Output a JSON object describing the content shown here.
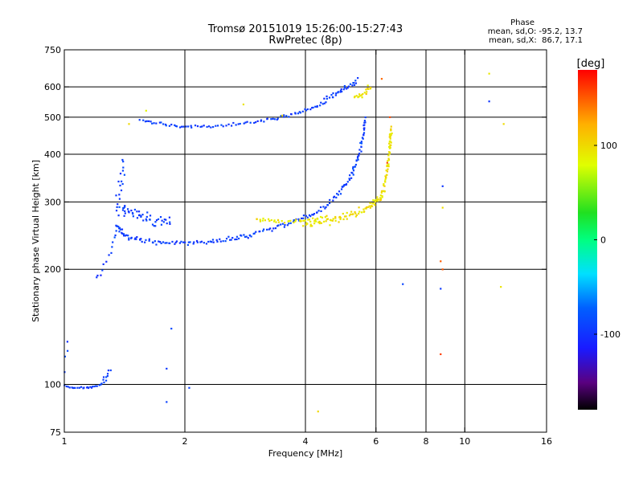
{
  "chart_data": {
    "type": "scatter",
    "title": "Tromsø 20151019 15:26:00-15:27:43",
    "subtitle": "RwPretec (8p)",
    "xlabel": "Frequency [MHz]",
    "ylabel": "Stationary phase Virtual Height [km]",
    "x_scale": "log",
    "y_scale": "log",
    "xlim": [
      1,
      16
    ],
    "ylim": [
      75,
      750
    ],
    "x_ticks": [
      1,
      2,
      4,
      6,
      8,
      10,
      16
    ],
    "x_tick_labels": [
      "1",
      "2",
      "4",
      "6",
      "8",
      "10",
      "16"
    ],
    "x_gridlines": [
      2,
      4,
      6,
      8,
      10
    ],
    "y_ticks": [
      75,
      100,
      200,
      300,
      400,
      500,
      600,
      750
    ],
    "y_tick_labels": [
      "75",
      "100",
      "200",
      "300",
      "400",
      "500",
      "600",
      "750"
    ],
    "y_gridlines": [
      100,
      200,
      300,
      400,
      500,
      600
    ],
    "grid": true,
    "phase_info": {
      "title": "Phase",
      "line_o": "mean, sd,O: -95.2, 13.7",
      "line_x": "mean, sd,X:  86.7, 17.1"
    },
    "colorbar": {
      "label": "[deg]",
      "range": [
        -180,
        180
      ],
      "ticks": [
        100,
        0,
        -100
      ],
      "tick_labels": [
        "100",
        "0",
        "-100"
      ]
    },
    "series": [
      {
        "mode": "O",
        "phase": -95,
        "segments": [
          {
            "x": [
              1.0,
              1.05,
              1.1,
              1.15,
              1.2,
              1.25
            ],
            "y": [
              99,
              98,
              98,
              98,
              99,
              101
            ],
            "n": 26,
            "jx": 0.01,
            "jy": 0.01
          },
          {
            "x": [
              1.25,
              1.3
            ],
            "y": [
              103,
              108
            ],
            "n": 8,
            "jx": 0.02,
            "jy": 0.02
          },
          {
            "x": [
              1.0,
              1.02
            ],
            "y": [
              110,
              130
            ],
            "n": 4,
            "jx": 0.01,
            "jy": 0.03
          },
          {
            "x": [
              1.2,
              1.25,
              1.3,
              1.33,
              1.36
            ],
            "y": [
              188,
              200,
              220,
              240,
              260
            ],
            "n": 14,
            "jx": 0.01,
            "jy": 0.02
          },
          {
            "x": [
              1.35,
              1.38,
              1.4
            ],
            "y": [
              280,
              330,
              380
            ],
            "n": 18,
            "jx": 0.02,
            "jy": 0.05
          },
          {
            "x": [
              1.35,
              1.42,
              1.55,
              1.75,
              2.0,
              2.3,
              2.6,
              2.9
            ],
            "y": [
              260,
              245,
              238,
              235,
              234,
              236,
              240,
              245
            ],
            "n": 90,
            "jx": 0.01,
            "jy": 0.02
          },
          {
            "x": [
              1.38,
              1.5,
              1.65,
              1.85
            ],
            "y": [
              290,
              280,
              270,
              262
            ],
            "n": 50,
            "jx": 0.03,
            "jy": 0.05
          },
          {
            "x": [
              2.9,
              3.3,
              3.7,
              4.1,
              4.5,
              4.9
            ],
            "y": [
              246,
              255,
              265,
              275,
              292,
              320
            ],
            "n": 60,
            "jx": 0.01,
            "jy": 0.02
          },
          {
            "x": [
              4.9,
              5.2,
              5.4,
              5.55,
              5.65
            ],
            "y": [
              320,
              350,
              390,
              440,
              500
            ],
            "n": 50,
            "jx": 0.01,
            "jy": 0.03
          },
          {
            "x": [
              1.55,
              1.8,
              2.1,
              2.5,
              3.0,
              3.5,
              4.0,
              4.5
            ],
            "y": [
              490,
              478,
              472,
              475,
              485,
              500,
              520,
              545
            ],
            "n": 90,
            "jx": 0.01,
            "jy": 0.015
          },
          {
            "x": [
              4.5,
              4.8,
              5.1,
              5.4
            ],
            "y": [
              560,
              580,
              600,
              625
            ],
            "n": 30,
            "jx": 0.015,
            "jy": 0.02
          },
          {
            "x": [
              1.85,
              1.8,
              1.8,
              2.05
            ],
            "y": [
              140,
              110,
              90,
              98
            ],
            "n": 4,
            "jx": 0.0,
            "jy": 0.0
          },
          {
            "x": [
              7.0,
              8.8,
              11.5,
              8.7
            ],
            "y": [
              183,
              330,
              550,
              178
            ],
            "n": 4,
            "jx": 0.0,
            "jy": 0.0
          }
        ]
      },
      {
        "mode": "X",
        "phase": 95,
        "segments": [
          {
            "x": [
              3.0,
              3.3,
              3.7,
              4.1,
              4.5
            ],
            "y": [
              270,
              268,
              266,
              268,
              275
            ],
            "n": 40,
            "jx": 0.015,
            "jy": 0.015
          },
          {
            "x": [
              4.0,
              4.6,
              5.2,
              5.8,
              6.2
            ],
            "y": [
              260,
              268,
              278,
              292,
              310
            ],
            "n": 80,
            "jx": 0.02,
            "jy": 0.03
          },
          {
            "x": [
              6.2,
              6.4,
              6.5,
              6.55
            ],
            "y": [
              310,
              360,
              420,
              470
            ],
            "n": 60,
            "jx": 0.01,
            "jy": 0.03
          },
          {
            "x": [
              5.3,
              5.6,
              5.8
            ],
            "y": [
              560,
              580,
              600
            ],
            "n": 20,
            "jx": 0.01,
            "jy": 0.03
          },
          {
            "x": [
              1.45,
              1.6,
              2.8,
              3.5,
              4.3,
              8.8,
              11.5,
              12.5,
              12.3
            ],
            "y": [
              480,
              520,
              540,
              505,
              85,
              290,
              650,
              480,
              180
            ],
            "n": 9,
            "jx": 0.0,
            "jy": 0.0
          }
        ]
      },
      {
        "mode": "X-red",
        "phase": 150,
        "segments": [
          {
            "x": [
              6.4,
              6.5,
              8.7,
              8.8,
              8.7,
              6.2
            ],
            "y": [
              380,
              500,
              210,
              200,
              120,
              630
            ],
            "n": 6,
            "jx": 0.0,
            "jy": 0.0
          }
        ]
      }
    ]
  }
}
